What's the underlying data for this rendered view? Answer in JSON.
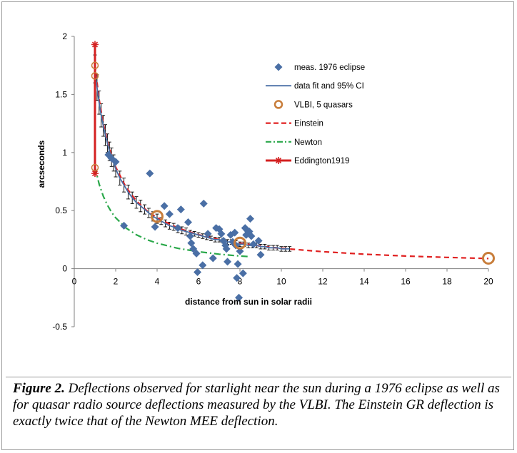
{
  "caption": {
    "label": "Figure 2.",
    "text": " Deflections observed for starlight near the sun during a 1976 eclipse as well as for quasar radio source deflections measured by the VLBI. The Einstein GR deflection is exactly twice that of the Newton MEE deflection."
  },
  "chart_data": {
    "type": "scatter",
    "title": "",
    "xlabel": "distance from sun in solar radii",
    "ylabel": "arcseconds",
    "xlim": [
      0,
      20
    ],
    "ylim": [
      -0.5,
      2
    ],
    "xticks": [
      0,
      2,
      4,
      6,
      8,
      10,
      12,
      14,
      16,
      18,
      20
    ],
    "yticks": [
      -0.5,
      0,
      0.5,
      1,
      1.5,
      2
    ],
    "xtick_labels": [
      "0",
      "2",
      "4",
      "6",
      "8",
      "10",
      "12",
      "14",
      "16",
      "18",
      "20"
    ],
    "ytick_labels": [
      "-0.5",
      "0",
      "0.5",
      "1",
      "1.5",
      "2"
    ],
    "grid": false,
    "legend_position": "upper-right",
    "series": [
      {
        "name": "meas. 1976 eclipse",
        "kind": "scatter",
        "marker": "diamond",
        "color": "#4a6fa5",
        "points": [
          [
            1.65,
            0.98
          ],
          [
            1.8,
            0.95
          ],
          [
            2.0,
            0.92
          ],
          [
            2.4,
            0.37
          ],
          [
            3.65,
            0.82
          ],
          [
            3.9,
            0.36
          ],
          [
            4.35,
            0.54
          ],
          [
            4.6,
            0.47
          ],
          [
            5.0,
            0.35
          ],
          [
            5.15,
            0.51
          ],
          [
            5.5,
            0.4
          ],
          [
            5.6,
            0.28
          ],
          [
            5.65,
            0.22
          ],
          [
            5.75,
            0.17
          ],
          [
            5.9,
            0.13
          ],
          [
            5.95,
            -0.03
          ],
          [
            6.2,
            0.03
          ],
          [
            6.25,
            0.56
          ],
          [
            6.45,
            0.3
          ],
          [
            6.7,
            0.09
          ],
          [
            6.85,
            0.35
          ],
          [
            7.0,
            0.34
          ],
          [
            7.1,
            0.3
          ],
          [
            7.2,
            0.24
          ],
          [
            7.3,
            0.2
          ],
          [
            7.35,
            0.17
          ],
          [
            7.4,
            0.06
          ],
          [
            7.55,
            0.29
          ],
          [
            7.65,
            0.23
          ],
          [
            7.75,
            0.31
          ],
          [
            7.8,
            0.2
          ],
          [
            7.85,
            -0.08
          ],
          [
            7.9,
            0.04
          ],
          [
            7.95,
            -0.25
          ],
          [
            8.0,
            0.15
          ],
          [
            8.15,
            -0.04
          ],
          [
            8.25,
            0.35
          ],
          [
            8.3,
            0.29
          ],
          [
            8.35,
            0.33
          ],
          [
            8.45,
            0.32
          ],
          [
            8.5,
            0.43
          ],
          [
            8.55,
            0.28
          ],
          [
            8.65,
            0.21
          ],
          [
            8.9,
            0.24
          ],
          [
            9.0,
            0.12
          ]
        ]
      },
      {
        "name": "data fit and 95% CI",
        "kind": "line",
        "color": "#4a6fa5",
        "x": [
          1.0,
          1.1,
          1.2,
          1.3,
          1.4,
          1.5,
          1.6,
          1.7,
          1.8,
          1.9,
          2.0,
          2.2,
          2.4,
          2.6,
          2.8,
          3.0,
          3.2,
          3.4,
          3.6,
          3.8,
          4.0,
          4.2,
          4.4,
          4.6,
          4.8,
          5.0,
          5.2,
          5.4,
          5.6,
          5.8,
          6.0,
          6.2,
          6.4,
          6.6,
          6.8,
          7.0,
          7.2,
          7.4,
          7.6,
          7.8,
          8.0,
          8.2,
          8.4,
          8.6,
          8.8,
          9.0,
          9.2,
          9.4,
          9.6,
          9.8,
          10.0,
          10.2,
          10.4
        ],
        "y": [
          1.72,
          1.56,
          1.43,
          1.32,
          1.23,
          1.15,
          1.08,
          1.01,
          0.96,
          0.91,
          0.86,
          0.78,
          0.72,
          0.66,
          0.61,
          0.57,
          0.54,
          0.51,
          0.48,
          0.45,
          0.43,
          0.41,
          0.39,
          0.37,
          0.36,
          0.34,
          0.33,
          0.32,
          0.31,
          0.3,
          0.29,
          0.28,
          0.27,
          0.26,
          0.25,
          0.25,
          0.24,
          0.23,
          0.23,
          0.22,
          0.21,
          0.21,
          0.2,
          0.2,
          0.2,
          0.19,
          0.19,
          0.18,
          0.18,
          0.18,
          0.17,
          0.17,
          0.17
        ],
        "ci_halfwidth": [
          0.12,
          0.11,
          0.1,
          0.1,
          0.09,
          0.09,
          0.08,
          0.08,
          0.08,
          0.07,
          0.07,
          0.06,
          0.06,
          0.06,
          0.05,
          0.05,
          0.05,
          0.04,
          0.04,
          0.04,
          0.04,
          0.03,
          0.03,
          0.03,
          0.03,
          0.03,
          0.03,
          0.03,
          0.02,
          0.02,
          0.02,
          0.02,
          0.02,
          0.02,
          0.02,
          0.02,
          0.02,
          0.02,
          0.02,
          0.02,
          0.02,
          0.02,
          0.02,
          0.02,
          0.02,
          0.02,
          0.02,
          0.02,
          0.02,
          0.02,
          0.02,
          0.02,
          0.02
        ]
      },
      {
        "name": "VLBI, 5 quasars",
        "kind": "scatter",
        "marker": "circle",
        "color": "#c87d3a",
        "points": [
          [
            1.0,
            1.75
          ],
          [
            1.0,
            1.66
          ],
          [
            1.0,
            0.87
          ],
          [
            4.0,
            0.45
          ],
          [
            8.0,
            0.22
          ],
          [
            20.0,
            0.09
          ]
        ]
      },
      {
        "name": "Einstein",
        "kind": "line",
        "style": "dashed",
        "color": "#e02020",
        "x": [
          1.0,
          1.2,
          1.4,
          1.6,
          1.8,
          2.0,
          2.5,
          3.0,
          3.5,
          4.0,
          5.0,
          6.0,
          7.0,
          8.0,
          9.0,
          10.0,
          12.0,
          14.0,
          16.0,
          18.0,
          20.0
        ],
        "y": [
          1.75,
          1.458,
          1.25,
          1.094,
          0.972,
          0.875,
          0.7,
          0.583,
          0.5,
          0.438,
          0.35,
          0.292,
          0.25,
          0.219,
          0.194,
          0.175,
          0.146,
          0.125,
          0.109,
          0.097,
          0.0875
        ]
      },
      {
        "name": "Newton",
        "kind": "line",
        "style": "dashdot",
        "color": "#2aa84a",
        "x": [
          1.0,
          1.2,
          1.4,
          1.6,
          1.8,
          2.0,
          2.5,
          3.0,
          3.5,
          4.0,
          5.0,
          6.0,
          7.0,
          8.0,
          8.5
        ],
        "y": [
          0.875,
          0.729,
          0.625,
          0.547,
          0.486,
          0.438,
          0.35,
          0.292,
          0.25,
          0.219,
          0.175,
          0.146,
          0.125,
          0.109,
          0.103
        ]
      },
      {
        "name": "Eddington1919",
        "kind": "line",
        "marker": "star",
        "color": "#d42020",
        "points": [
          [
            1.0,
            1.93
          ],
          [
            1.0,
            0.82
          ]
        ]
      }
    ]
  }
}
